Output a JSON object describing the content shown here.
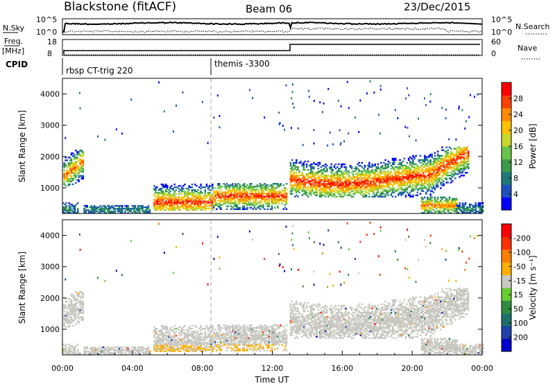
{
  "header": {
    "station": "Blackstone (fitACF)",
    "beam": "Beam 06",
    "date": "23/Dec/2015"
  },
  "top_panels": {
    "nsky_label": "N.Sky",
    "nsky_ticks": [
      "10^5",
      "10^0"
    ],
    "nsearch_label": "N.Search",
    "nsearch_ticks": [
      "10^5",
      "10^0"
    ],
    "freq_label_1": "Freq.",
    "freq_label_2": "[MHz]",
    "freq_ticks": [
      "18",
      "8"
    ],
    "nave_label": "Nave",
    "nave_ticks": [
      "60",
      "0"
    ],
    "cpid_label": "CPID",
    "cpid_modes": [
      {
        "label": "rbsp CT-trig 220",
        "start_hour": 0
      },
      {
        "label": "themis -3300",
        "start_hour": 8.6
      }
    ]
  },
  "chart_data": [
    {
      "type": "heatmap",
      "quantity": "power",
      "ylabel": "Slant Range [km]",
      "ylim": [
        180,
        4500
      ],
      "yticks": [
        1000,
        2000,
        3000,
        4000
      ],
      "xlim": [
        0,
        24
      ],
      "colorbar": {
        "label": "Power [dB]",
        "ticks": [
          4,
          8,
          12,
          16,
          20,
          24,
          28
        ],
        "colors": [
          "#0000ff",
          "#2050c0",
          "#1f7a7a",
          "#3d9c4a",
          "#6ac44a",
          "#c6d62a",
          "#ffc200",
          "#ff8a00",
          "#ff4000",
          "#ff0000"
        ]
      }
    },
    {
      "type": "heatmap",
      "quantity": "velocity",
      "ylabel": "Slant Range [km]",
      "ylim": [
        180,
        4500
      ],
      "yticks": [
        1000,
        2000,
        3000,
        4000
      ],
      "xlim": [
        0,
        24
      ],
      "xticks": [
        "00:00",
        "04:00",
        "08:00",
        "12:00",
        "16:00",
        "20:00",
        "00:00"
      ],
      "xlabel": "Time UT",
      "colorbar": {
        "label": "Velocity [m s⁻¹]",
        "ticks": [
          "200",
          "100",
          "50",
          "15",
          "-15",
          "-50",
          "-100",
          "-200"
        ],
        "colors": [
          "#0000cc",
          "#2040aa",
          "#1f6f6f",
          "#2f8c3f",
          "#66cc33",
          "#c8c8c0",
          "#ffb000",
          "#ff8000",
          "#ff3000",
          "#ff0000"
        ]
      }
    }
  ]
}
